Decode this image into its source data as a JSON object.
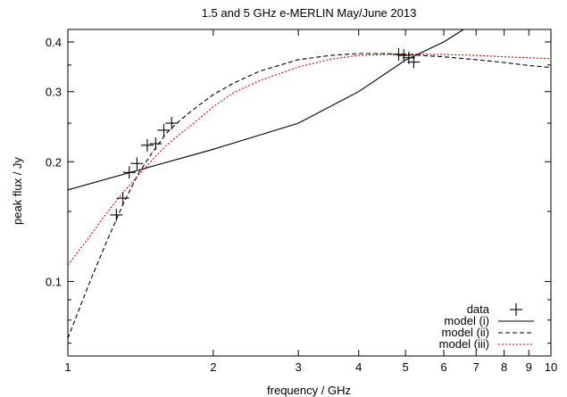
{
  "chart_data": {
    "type": "scatter",
    "title": "1.5 and 5 GHz e-MERLIN May/June 2013",
    "xlabel": "frequency / GHz",
    "ylabel": "peak flux / Jy",
    "xscale": "log",
    "yscale": "log",
    "xlim": [
      1,
      10
    ],
    "ylim": [
      0.065,
      0.43
    ],
    "xticks": [
      1,
      2,
      3,
      4,
      5,
      6,
      7,
      8,
      9,
      10
    ],
    "xtick_labels": [
      "1",
      "2",
      "3",
      "4",
      "5",
      "6",
      "7",
      "8",
      "9",
      "10"
    ],
    "yticks": [
      0.1,
      0.2,
      0.3,
      0.4
    ],
    "ytick_labels": [
      "0.1",
      "0.2",
      "0.3",
      "0.4"
    ],
    "grid": false,
    "legend_position": "bottom-right",
    "series": [
      {
        "name": "data",
        "style": "points",
        "marker": "plus",
        "color": "#000000",
        "points": [
          {
            "x": 1.26,
            "y": 0.147
          },
          {
            "x": 1.3,
            "y": 0.162
          },
          {
            "x": 1.34,
            "y": 0.188
          },
          {
            "x": 1.39,
            "y": 0.198
          },
          {
            "x": 1.46,
            "y": 0.22
          },
          {
            "x": 1.52,
            "y": 0.222
          },
          {
            "x": 1.58,
            "y": 0.24
          },
          {
            "x": 1.64,
            "y": 0.25
          },
          {
            "x": 4.84,
            "y": 0.372
          },
          {
            "x": 4.96,
            "y": 0.37
          },
          {
            "x": 5.08,
            "y": 0.365
          },
          {
            "x": 5.2,
            "y": 0.356
          }
        ]
      },
      {
        "name": "model (i)",
        "style": "line",
        "dash": "solid",
        "color": "#000000",
        "x": [
          1,
          2,
          3,
          4,
          5,
          6,
          7
        ],
        "y": [
          0.17,
          0.215,
          0.25,
          0.3,
          0.36,
          0.4,
          0.45
        ]
      },
      {
        "name": "model (ii)",
        "style": "line",
        "dash": "dashed",
        "color": "#000000",
        "x": [
          1.0,
          1.1,
          1.2,
          1.3,
          1.4,
          1.5,
          1.6,
          1.7,
          1.8,
          2.0,
          2.2,
          2.5,
          3.0,
          3.5,
          4.0,
          4.5,
          5.0,
          6.0,
          7.0,
          8.0,
          9.0,
          10.0
        ],
        "y": [
          0.072,
          0.097,
          0.125,
          0.156,
          0.187,
          0.212,
          0.236,
          0.253,
          0.268,
          0.295,
          0.315,
          0.338,
          0.361,
          0.37,
          0.374,
          0.374,
          0.372,
          0.367,
          0.361,
          0.355,
          0.349,
          0.345
        ]
      },
      {
        "name": "model (iii)",
        "style": "line",
        "dash": "dotted",
        "color": "#dd0000",
        "x": [
          1.0,
          1.1,
          1.2,
          1.3,
          1.4,
          1.5,
          1.6,
          1.7,
          1.8,
          2.0,
          2.2,
          2.5,
          3.0,
          3.5,
          4.0,
          4.5,
          5.0,
          6.0,
          7.0,
          8.0,
          9.0,
          10.0
        ],
        "y": [
          0.11,
          0.128,
          0.148,
          0.167,
          0.185,
          0.203,
          0.22,
          0.234,
          0.247,
          0.275,
          0.298,
          0.32,
          0.346,
          0.362,
          0.37,
          0.372,
          0.373,
          0.372,
          0.37,
          0.367,
          0.365,
          0.363
        ]
      }
    ]
  }
}
